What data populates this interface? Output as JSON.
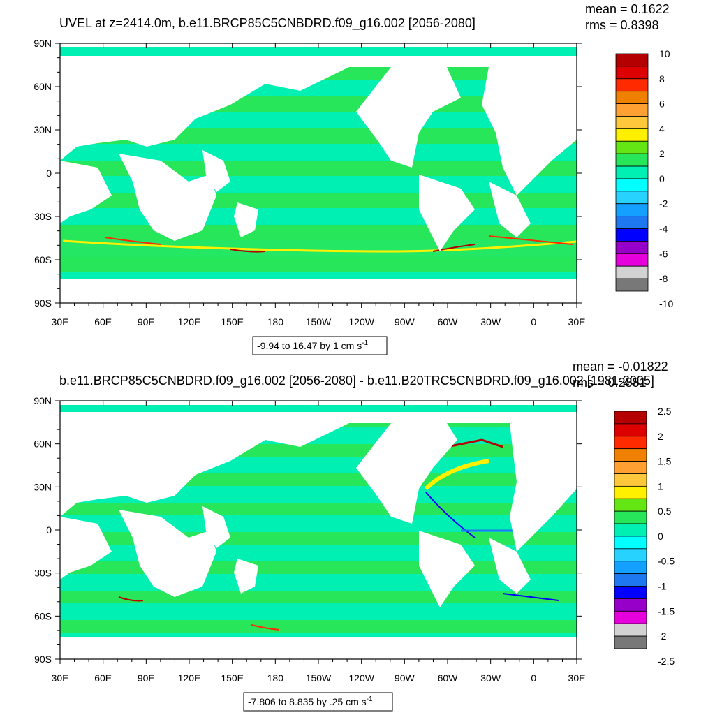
{
  "chart_data": [
    {
      "type": "heatmap",
      "title": "UVEL at z=2414.0m, b.e11.BRCP85C5CNBDRD.f09_g16.002 [2056-2080]",
      "stats": {
        "mean": "mean = 0.1622",
        "rms": "rms = 0.8398"
      },
      "x_ticks": [
        "30E",
        "60E",
        "90E",
        "120E",
        "150E",
        "180",
        "150W",
        "120W",
        "90W",
        "60W",
        "30W",
        "0",
        "30E"
      ],
      "y_ticks": [
        "90N",
        "60N",
        "30N",
        "0",
        "30S",
        "60S",
        "90S"
      ],
      "colorbar_labels": [
        "10",
        "8",
        "6",
        "4",
        "2",
        "0",
        "-2",
        "-4",
        "-6",
        "-8",
        "-10"
      ],
      "colorbar_colors": [
        "#b40000",
        "#dc0000",
        "#ff2a00",
        "#f08000",
        "#ffa032",
        "#ffc83c",
        "#fff000",
        "#64e614",
        "#28e65a",
        "#00f0b4",
        "#00ffff",
        "#28d2ff",
        "#14a0ff",
        "#1e78f0",
        "#0000ff",
        "#9600c8",
        "#e600dc",
        "#d2d2d2",
        "#787878"
      ],
      "range_label": "-9.94 to 16.47 by 1 cm s",
      "range_sup": "-1"
    },
    {
      "type": "heatmap",
      "title": "b.e11.BRCP85C5CNBDRD.f09_g16.002 [2056-2080] - b.e11.B20TRC5CNBDRD.f09_g16.002 [1981-2005]",
      "stats": {
        "mean": "mean = -0.01822",
        "rms": "rms = 0.2881"
      },
      "x_ticks": [
        "30E",
        "60E",
        "90E",
        "120E",
        "150E",
        "180",
        "150W",
        "120W",
        "90W",
        "60W",
        "30W",
        "0",
        "30E"
      ],
      "y_ticks": [
        "90N",
        "60N",
        "30N",
        "0",
        "30S",
        "60S",
        "90S"
      ],
      "colorbar_labels": [
        "2.5",
        "2",
        "1.5",
        "1",
        "0.5",
        "0",
        "-0.5",
        "-1",
        "-1.5",
        "-2",
        "-2.5"
      ],
      "colorbar_colors": [
        "#b40000",
        "#dc0000",
        "#ff2a00",
        "#f08000",
        "#ffa032",
        "#ffc83c",
        "#fff000",
        "#64e614",
        "#28e65a",
        "#00f0b4",
        "#00ffff",
        "#28d2ff",
        "#14a0ff",
        "#1e78f0",
        "#0000ff",
        "#9600c8",
        "#e600dc",
        "#d2d2d2",
        "#787878"
      ],
      "range_label": "-7.806 to 8.835 by .25 cm s",
      "range_sup": "-1"
    }
  ],
  "colors": {
    "green": "#28e65a",
    "cyan": "#00f0b4",
    "yellow": "#fff000",
    "land": "#ffffff"
  }
}
